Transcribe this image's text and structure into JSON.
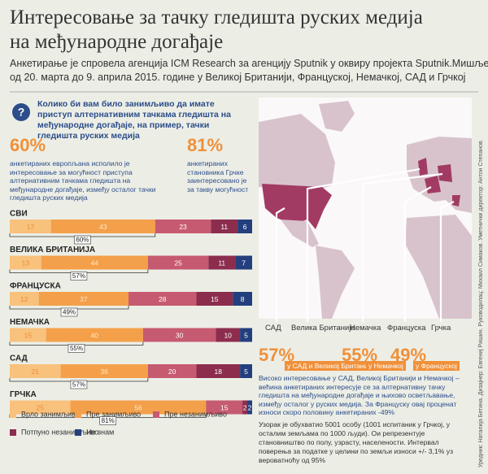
{
  "header": {
    "title": [
      "Интересовање за тачку гледишта руских медија",
      "на међународне догађаје"
    ],
    "subtitle": [
      "Анкетирање је спровела агенција ICM Research за агенцију Sputnik у оквиру пројекта Sputnik.Мишљења",
      "од 20. марта до 9. априла 2015. године у Великој Британији, Француској, Немачкој, САД и Грчкој"
    ]
  },
  "question": "Колико би вам било занимљиво да имате приступ алтернативним тачкама гледишта на међународне догађаје, на пример, тачки гледишта руских медија",
  "stats": [
    {
      "value": "60%",
      "text": "анкетираних европљана исполило је интересовање за могућност приступа алтернативним тачкама гледишта на међународне догађаје, између осталог тачки гледишта руских медија"
    },
    {
      "value": "81%",
      "text": "анкетираних становника Грчке заинтересовано је за такву могућност"
    }
  ],
  "map": {
    "labels": [
      "САД",
      "Велика Британија",
      "Немачка",
      "Француска",
      "Грчка"
    ],
    "stats": [
      {
        "value": "57%",
        "label": "у САД и Великој Британији"
      },
      {
        "value": "55%",
        "label": "у Немачкој"
      },
      {
        "value": "49%",
        "label": "у Француској"
      }
    ],
    "text": "Високо интересовање у САД, Великој Британији и Немачкој – већина анкетираних интересује се за алтернативну тачку гледишта на међународне догађаје и њихово осветљавање, између осталог у руских медија. За Француску овај проценат износи скоро половину анкетираних -49%"
  },
  "note": "Узорак је обухватио 5001 особу (1001 испитаник у Грчкој, у осталим земљама по 1000 људи). Ои репрезентује становништво по полу, узрасту, населености. Интервал поверења за податке у целини по земљи износи +/- 3,1% уз вероватноћу од 95%",
  "credits": "Уредник: Наталија Бетина. Дизајнер: Евгениј Ришин. Руководилац: Михаил Симаков. Уметнички директор: Антон Степанов.",
  "chart_data": {
    "type": "stacked_barh",
    "categories": [
      "СВИ",
      "ВЕЛИКА БРИТАНИЈА",
      "ФРАНЦУСКА",
      "НЕМАЧКА",
      "САД",
      "ГРЧКА"
    ],
    "xlim": [
      0,
      100
    ],
    "series": [
      {
        "name": "Врло занимљиво",
        "color": "#f8c17c",
        "values": [
          17,
          13,
          12,
          15,
          21,
          25
        ]
      },
      {
        "name": "Пре занимљиво",
        "color": "#f4a04a",
        "values": [
          43,
          44,
          37,
          40,
          36,
          56
        ]
      },
      {
        "name": "Пре незанимљиво",
        "color": "#c65a70",
        "values": [
          23,
          25,
          28,
          30,
          20,
          15
        ]
      },
      {
        "name": "Потпуно незанимљиво",
        "color": "#8c2d4e",
        "values": [
          11,
          11,
          15,
          10,
          18,
          2
        ]
      },
      {
        "name": "Не знам",
        "color": "#243f7d",
        "values": [
          6,
          7,
          8,
          5,
          5,
          2
        ]
      }
    ],
    "summary": {
      "values": [
        60,
        57,
        49,
        55,
        57,
        81
      ],
      "value_labels": [
        "60%",
        "57%",
        "49%",
        "55%",
        "57%",
        "81%"
      ]
    }
  }
}
